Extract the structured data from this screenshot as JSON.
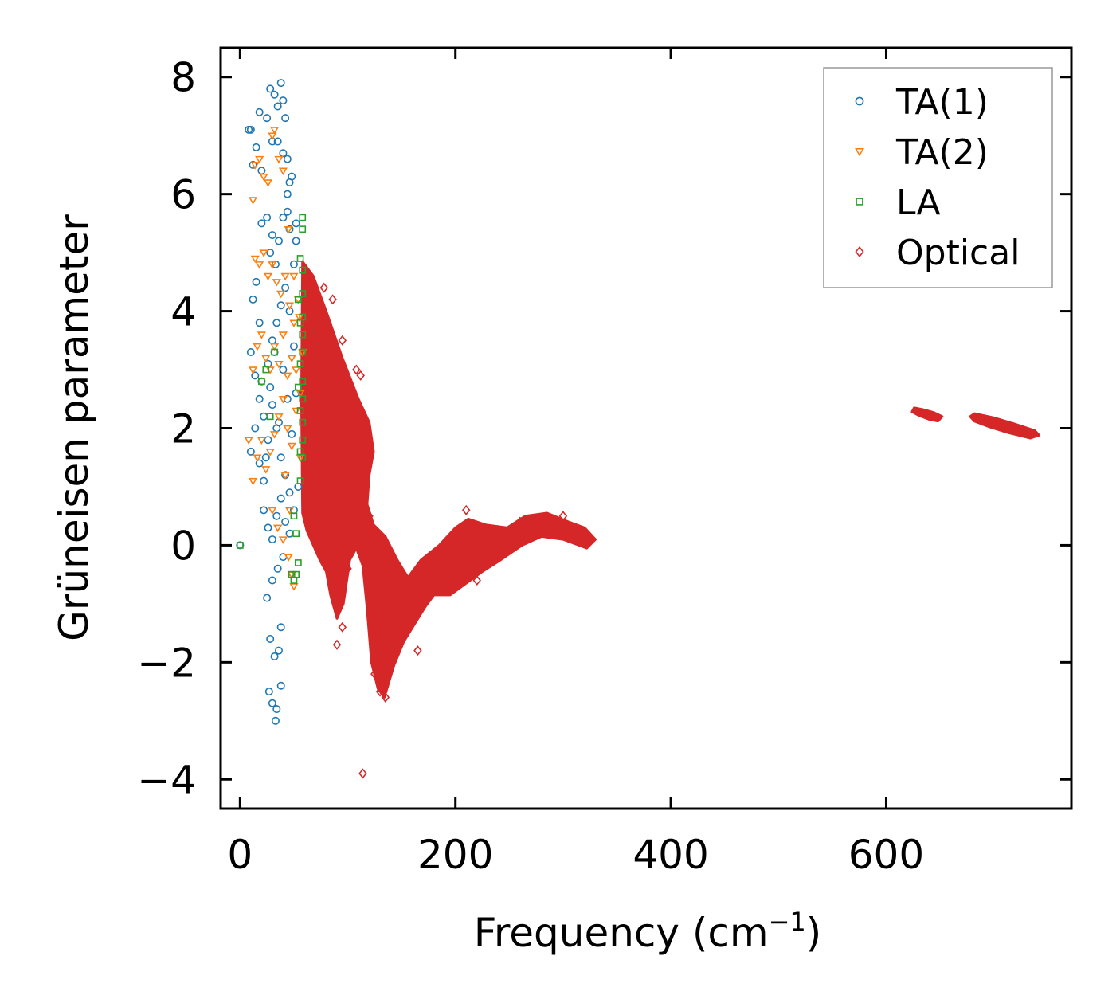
{
  "chart_data": {
    "type": "scatter",
    "title": "",
    "xlabel": "Frequency (cm",
    "xlabel_sup": "−1",
    "xlabel_close": ")",
    "ylabel": "Grüneisen parameter",
    "xlim": [
      -18,
      772
    ],
    "ylim": [
      -4.5,
      8.5
    ],
    "xticks": [
      0,
      200,
      400,
      600
    ],
    "xtick_labels": [
      "0",
      "200",
      "400",
      "600"
    ],
    "yticks": [
      -4,
      -2,
      0,
      2,
      4,
      6,
      8
    ],
    "ytick_labels": [
      "−4",
      "−2",
      "0",
      "2",
      "4",
      "6",
      "8"
    ],
    "legend_position": "top-right",
    "series": [
      {
        "name": "TA(1)",
        "marker": "circle",
        "color": "#1f77b4",
        "points": [
          [
            0,
            0
          ],
          [
            8,
            7.1
          ],
          [
            10,
            7.1
          ],
          [
            12,
            6.5
          ],
          [
            15,
            6.8
          ],
          [
            18,
            7.4
          ],
          [
            20,
            6.4
          ],
          [
            25,
            7.3
          ],
          [
            28,
            7.8
          ],
          [
            32,
            7.7
          ],
          [
            35,
            7.5
          ],
          [
            38,
            7.9
          ],
          [
            40,
            7.6
          ],
          [
            42,
            7.3
          ],
          [
            30,
            6.9
          ],
          [
            35,
            6.9
          ],
          [
            40,
            6.7
          ],
          [
            44,
            6.6
          ],
          [
            46,
            6.2
          ],
          [
            12,
            4.2
          ],
          [
            15,
            4.5
          ],
          [
            18,
            3.8
          ],
          [
            20,
            5.5
          ],
          [
            25,
            5.6
          ],
          [
            28,
            5.0
          ],
          [
            30,
            5.3
          ],
          [
            33,
            4.8
          ],
          [
            36,
            5.2
          ],
          [
            40,
            5.6
          ],
          [
            44,
            5.7
          ],
          [
            46,
            5.4
          ],
          [
            10,
            3.3
          ],
          [
            14,
            2.9
          ],
          [
            18,
            2.5
          ],
          [
            22,
            2.2
          ],
          [
            26,
            3.1
          ],
          [
            30,
            3.5
          ],
          [
            34,
            3.8
          ],
          [
            38,
            4.1
          ],
          [
            42,
            4.4
          ],
          [
            46,
            4.0
          ],
          [
            10,
            1.6
          ],
          [
            14,
            2.0
          ],
          [
            18,
            1.4
          ],
          [
            22,
            1.1
          ],
          [
            26,
            1.8
          ],
          [
            30,
            2.4
          ],
          [
            34,
            2.0
          ],
          [
            38,
            1.5
          ],
          [
            42,
            1.2
          ],
          [
            46,
            0.9
          ],
          [
            22,
            0.6
          ],
          [
            26,
            0.3
          ],
          [
            30,
            0.1
          ],
          [
            34,
            0.5
          ],
          [
            38,
            0.8
          ],
          [
            42,
            0.4
          ],
          [
            46,
            0.2
          ],
          [
            25,
            -0.9
          ],
          [
            30,
            -0.6
          ],
          [
            35,
            -0.4
          ],
          [
            40,
            -0.2
          ],
          [
            28,
            -1.6
          ],
          [
            32,
            -1.9
          ],
          [
            36,
            -1.8
          ],
          [
            38,
            -1.4
          ],
          [
            27,
            -2.5
          ],
          [
            30,
            -2.7
          ],
          [
            34,
            -2.8
          ],
          [
            38,
            -2.4
          ],
          [
            33,
            -3.0
          ],
          [
            20,
            2.8
          ],
          [
            24,
            1.5
          ],
          [
            28,
            2.7
          ],
          [
            32,
            3.3
          ],
          [
            36,
            2.1
          ],
          [
            40,
            3.0
          ],
          [
            44,
            2.5
          ],
          [
            48,
            1.9
          ],
          [
            50,
            4.8
          ],
          [
            52,
            5.5
          ],
          [
            48,
            6.3
          ],
          [
            44,
            6.0
          ],
          [
            50,
            3.4
          ],
          [
            52,
            2.6
          ],
          [
            54,
            1.0
          ],
          [
            50,
            0.6
          ],
          [
            52,
            5.2
          ]
        ]
      },
      {
        "name": "TA(2)",
        "marker": "triangle-down",
        "color": "#ff7f0e",
        "points": [
          [
            12,
            5.9
          ],
          [
            14,
            6.5
          ],
          [
            18,
            6.6
          ],
          [
            22,
            6.3
          ],
          [
            26,
            6.2
          ],
          [
            30,
            7.0
          ],
          [
            32,
            7.1
          ],
          [
            36,
            6.6
          ],
          [
            40,
            6.4
          ],
          [
            14,
            4.9
          ],
          [
            18,
            4.8
          ],
          [
            22,
            5.0
          ],
          [
            26,
            4.6
          ],
          [
            30,
            4.8
          ],
          [
            34,
            4.5
          ],
          [
            38,
            4.3
          ],
          [
            42,
            4.6
          ],
          [
            46,
            4.1
          ],
          [
            50,
            3.8
          ],
          [
            54,
            4.2
          ],
          [
            12,
            3.0
          ],
          [
            16,
            3.4
          ],
          [
            20,
            3.6
          ],
          [
            24,
            3.2
          ],
          [
            28,
            3.0
          ],
          [
            32,
            3.4
          ],
          [
            36,
            3.1
          ],
          [
            40,
            3.6
          ],
          [
            44,
            2.9
          ],
          [
            48,
            3.2
          ],
          [
            52,
            3.0
          ],
          [
            56,
            2.6
          ],
          [
            12,
            1.1
          ],
          [
            16,
            1.5
          ],
          [
            20,
            1.8
          ],
          [
            24,
            1.3
          ],
          [
            28,
            1.6
          ],
          [
            32,
            1.9
          ],
          [
            36,
            2.2
          ],
          [
            40,
            2.5
          ],
          [
            44,
            2.0
          ],
          [
            48,
            1.7
          ],
          [
            52,
            2.3
          ],
          [
            56,
            1.5
          ],
          [
            30,
            0.6
          ],
          [
            35,
            0.3
          ],
          [
            40,
            0.1
          ],
          [
            45,
            -0.2
          ],
          [
            48,
            -0.5
          ],
          [
            50,
            -0.7
          ],
          [
            8,
            1.8
          ],
          [
            45,
            5.4
          ],
          [
            50,
            4.6
          ],
          [
            55,
            3.9
          ],
          [
            58,
            3.3
          ],
          [
            42,
            1.2
          ],
          [
            46,
            0.6
          ]
        ]
      },
      {
        "name": "LA",
        "marker": "square",
        "color": "#2ca02c",
        "points": [
          [
            0,
            0
          ],
          [
            20,
            2.8
          ],
          [
            24,
            3.0
          ],
          [
            28,
            2.2
          ],
          [
            32,
            3.3
          ],
          [
            58,
            5.6
          ],
          [
            58,
            5.4
          ],
          [
            56,
            4.9
          ],
          [
            58,
            4.7
          ],
          [
            58,
            4.3
          ],
          [
            58,
            3.9
          ],
          [
            58,
            3.6
          ],
          [
            58,
            3.3
          ],
          [
            56,
            3.1
          ],
          [
            58,
            2.8
          ],
          [
            58,
            2.5
          ],
          [
            58,
            2.1
          ],
          [
            58,
            1.8
          ],
          [
            58,
            1.5
          ],
          [
            56,
            1.1
          ],
          [
            50,
            0.5
          ],
          [
            52,
            0.2
          ],
          [
            54,
            -0.3
          ],
          [
            52,
            -0.5
          ],
          [
            50,
            -0.6
          ],
          [
            48,
            -0.5
          ],
          [
            56,
            3.8
          ],
          [
            56,
            2.3
          ],
          [
            56,
            1.6
          ],
          [
            54,
            4.2
          ],
          [
            54,
            2.7
          ]
        ]
      },
      {
        "name": "Optical",
        "marker": "diamond",
        "color": "#d62728",
        "points": [
          [
            114,
            -3.9
          ],
          [
            90,
            -1.7
          ],
          [
            95,
            -1.4
          ],
          [
            135,
            -2.6
          ],
          [
            130,
            -2.5
          ],
          [
            125,
            -2.2
          ],
          [
            100,
            -0.4
          ],
          [
            100,
            2.4
          ],
          [
            120,
            0.5
          ],
          [
            150,
            -0.7
          ],
          [
            165,
            -1.8
          ],
          [
            190,
            -0.4
          ],
          [
            205,
            0.2
          ],
          [
            210,
            0.6
          ],
          [
            220,
            -0.6
          ],
          [
            260,
            0.4
          ],
          [
            300,
            0.5
          ],
          [
            95,
            3.5
          ],
          [
            108,
            3.0
          ],
          [
            112,
            2.9
          ],
          [
            86,
            4.2
          ],
          [
            78,
            4.4
          ]
        ],
        "regions": [
          [
            [
              58,
              4.85
            ],
            [
              68,
              4.6
            ],
            [
              80,
              4.0
            ],
            [
              95,
              3.2
            ],
            [
              110,
              2.5
            ],
            [
              120,
              2.1
            ],
            [
              124,
              1.6
            ],
            [
              120,
              1.2
            ],
            [
              118,
              0.7
            ],
            [
              124,
              0.35
            ],
            [
              135,
              0.15
            ],
            [
              146,
              -0.25
            ],
            [
              156,
              -0.55
            ],
            [
              168,
              -0.25
            ],
            [
              185,
              0.0
            ],
            [
              200,
              0.3
            ],
            [
              212,
              0.45
            ],
            [
              228,
              0.35
            ],
            [
              248,
              0.3
            ],
            [
              265,
              0.5
            ],
            [
              285,
              0.55
            ],
            [
              305,
              0.4
            ],
            [
              320,
              0.3
            ],
            [
              330,
              0.1
            ],
            [
              322,
              -0.05
            ],
            [
              300,
              0.1
            ],
            [
              280,
              0.15
            ],
            [
              262,
              0.0
            ],
            [
              242,
              -0.25
            ],
            [
              225,
              -0.45
            ],
            [
              210,
              -0.65
            ],
            [
              195,
              -0.85
            ],
            [
              180,
              -0.85
            ],
            [
              172,
              -1.05
            ],
            [
              162,
              -1.35
            ],
            [
              152,
              -1.65
            ],
            [
              143,
              -2.05
            ],
            [
              134,
              -2.6
            ],
            [
              128,
              -2.45
            ],
            [
              122,
              -2.0
            ],
            [
              118,
              -1.1
            ],
            [
              114,
              -0.35
            ],
            [
              108,
              -0.05
            ],
            [
              102,
              -0.25
            ],
            [
              96,
              -1.0
            ],
            [
              90,
              -1.25
            ],
            [
              84,
              -0.85
            ],
            [
              80,
              -0.45
            ],
            [
              74,
              -0.25
            ],
            [
              68,
              0.0
            ],
            [
              62,
              0.25
            ],
            [
              58,
              0.55
            ],
            [
              57,
              2.5
            ]
          ],
          [
            [
              626,
              2.35
            ],
            [
              634,
              2.32
            ],
            [
              644,
              2.27
            ],
            [
              652,
              2.2
            ],
            [
              648,
              2.12
            ],
            [
              640,
              2.15
            ],
            [
              630,
              2.22
            ],
            [
              624,
              2.28
            ]
          ],
          [
            [
              682,
              2.25
            ],
            [
              700,
              2.18
            ],
            [
              718,
              2.08
            ],
            [
              738,
              1.96
            ],
            [
              742,
              1.88
            ],
            [
              734,
              1.83
            ],
            [
              714,
              1.92
            ],
            [
              696,
              2.02
            ],
            [
              682,
              2.12
            ],
            [
              678,
              2.2
            ]
          ]
        ]
      }
    ]
  }
}
